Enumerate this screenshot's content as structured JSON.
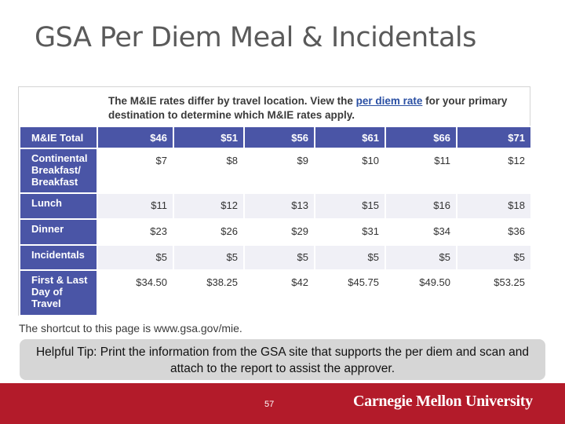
{
  "slide": {
    "title": "GSA Per Diem Meal & Incidentals",
    "tip": "Helpful Tip:  Print the information from the GSA site that supports the per diem and  scan and attach to the report to assist the approver.",
    "page_number": "57",
    "logo_text": "Carnegie Mellon University"
  },
  "screenshot": {
    "note_prefix": "The M&IE rates differ by travel location.  View the ",
    "note_link": "per diem rate",
    "note_suffix": " for your primary destination to determine which M&IE rates apply.",
    "shortcut": "The shortcut to this page is www.gsa.gov/mie.",
    "table": {
      "header": {
        "label": "M&IE Total",
        "values": [
          "$46",
          "$51",
          "$56",
          "$61",
          "$66",
          "$71"
        ]
      },
      "rows": [
        {
          "label": "Continental Breakfast/ Breakfast",
          "values": [
            "$7",
            "$8",
            "$9",
            "$10",
            "$11",
            "$12"
          ]
        },
        {
          "label": "Lunch",
          "values": [
            "$11",
            "$12",
            "$13",
            "$15",
            "$16",
            "$18"
          ]
        },
        {
          "label": "Dinner",
          "values": [
            "$23",
            "$26",
            "$29",
            "$31",
            "$34",
            "$36"
          ]
        },
        {
          "label": "Incidentals",
          "values": [
            "$5",
            "$5",
            "$5",
            "$5",
            "$5",
            "$5"
          ]
        },
        {
          "label": "First & Last Day of Travel",
          "values": [
            "$34.50",
            "$38.25",
            "$42",
            "$45.75",
            "$49.50",
            "$53.25"
          ]
        }
      ]
    }
  }
}
